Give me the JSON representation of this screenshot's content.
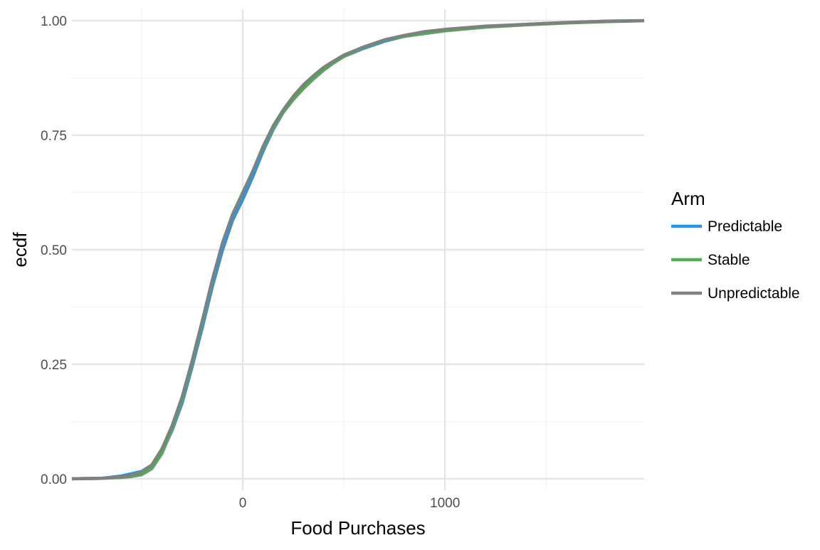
{
  "chart_data": {
    "type": "line",
    "subtype": "ecdf",
    "xlabel": "Food Purchases",
    "ylabel": "ecdf",
    "xlim": [
      -845,
      1985
    ],
    "ylim": [
      -0.025,
      1.025
    ],
    "x_ticks": [
      {
        "value": 0,
        "label": "0"
      },
      {
        "value": 1000,
        "label": "1000"
      }
    ],
    "x_minor_ticks": [
      -500,
      500,
      1500
    ],
    "y_ticks": [
      {
        "value": 0.0,
        "label": "0.00"
      },
      {
        "value": 0.25,
        "label": "0.25"
      },
      {
        "value": 0.5,
        "label": "0.50"
      },
      {
        "value": 0.75,
        "label": "0.75"
      },
      {
        "value": 1.0,
        "label": "1.00"
      }
    ],
    "y_minor_ticks": [
      0.125,
      0.375,
      0.625,
      0.875
    ],
    "grid": true,
    "legend": {
      "title": "Arm",
      "position": "right"
    },
    "series": [
      {
        "name": "Predictable",
        "color": "#2196F3",
        "points": [
          [
            -845,
            0.0
          ],
          [
            -700,
            0.001
          ],
          [
            -600,
            0.006
          ],
          [
            -550,
            0.011
          ],
          [
            -500,
            0.016
          ],
          [
            -450,
            0.03
          ],
          [
            -400,
            0.058
          ],
          [
            -350,
            0.105
          ],
          [
            -300,
            0.165
          ],
          [
            -250,
            0.245
          ],
          [
            -200,
            0.33
          ],
          [
            -150,
            0.42
          ],
          [
            -100,
            0.5
          ],
          [
            -50,
            0.565
          ],
          [
            0,
            0.61
          ],
          [
            50,
            0.66
          ],
          [
            100,
            0.715
          ],
          [
            150,
            0.762
          ],
          [
            200,
            0.8
          ],
          [
            250,
            0.83
          ],
          [
            300,
            0.855
          ],
          [
            350,
            0.875
          ],
          [
            400,
            0.893
          ],
          [
            450,
            0.91
          ],
          [
            500,
            0.922
          ],
          [
            600,
            0.94
          ],
          [
            700,
            0.955
          ],
          [
            800,
            0.966
          ],
          [
            900,
            0.975
          ],
          [
            1000,
            0.98
          ],
          [
            1200,
            0.987
          ],
          [
            1400,
            0.992
          ],
          [
            1600,
            0.996
          ],
          [
            1800,
            0.999
          ],
          [
            1985,
            1.0
          ]
        ]
      },
      {
        "name": "Stable",
        "color": "#4CAF50",
        "points": [
          [
            -845,
            0.0
          ],
          [
            -700,
            0.001
          ],
          [
            -600,
            0.003
          ],
          [
            -550,
            0.005
          ],
          [
            -500,
            0.009
          ],
          [
            -450,
            0.022
          ],
          [
            -400,
            0.055
          ],
          [
            -350,
            0.108
          ],
          [
            -300,
            0.172
          ],
          [
            -250,
            0.252
          ],
          [
            -200,
            0.34
          ],
          [
            -150,
            0.432
          ],
          [
            -100,
            0.515
          ],
          [
            -50,
            0.578
          ],
          [
            0,
            0.625
          ],
          [
            50,
            0.672
          ],
          [
            100,
            0.722
          ],
          [
            150,
            0.765
          ],
          [
            200,
            0.8
          ],
          [
            250,
            0.828
          ],
          [
            300,
            0.852
          ],
          [
            350,
            0.873
          ],
          [
            400,
            0.892
          ],
          [
            450,
            0.908
          ],
          [
            500,
            0.922
          ],
          [
            600,
            0.942
          ],
          [
            700,
            0.957
          ],
          [
            800,
            0.966
          ],
          [
            900,
            0.972
          ],
          [
            1000,
            0.978
          ],
          [
            1200,
            0.986
          ],
          [
            1400,
            0.991
          ],
          [
            1600,
            0.995
          ],
          [
            1800,
            0.998
          ],
          [
            1985,
            1.0
          ]
        ]
      },
      {
        "name": "Unpredictable",
        "color": "#808080",
        "points": [
          [
            -845,
            0.0
          ],
          [
            -700,
            0.001
          ],
          [
            -600,
            0.004
          ],
          [
            -550,
            0.008
          ],
          [
            -500,
            0.014
          ],
          [
            -450,
            0.03
          ],
          [
            -400,
            0.065
          ],
          [
            -350,
            0.115
          ],
          [
            -300,
            0.178
          ],
          [
            -250,
            0.258
          ],
          [
            -200,
            0.345
          ],
          [
            -150,
            0.435
          ],
          [
            -100,
            0.515
          ],
          [
            -50,
            0.575
          ],
          [
            0,
            0.622
          ],
          [
            50,
            0.672
          ],
          [
            100,
            0.725
          ],
          [
            150,
            0.77
          ],
          [
            200,
            0.805
          ],
          [
            250,
            0.835
          ],
          [
            300,
            0.86
          ],
          [
            350,
            0.88
          ],
          [
            400,
            0.898
          ],
          [
            450,
            0.912
          ],
          [
            500,
            0.925
          ],
          [
            600,
            0.943
          ],
          [
            700,
            0.958
          ],
          [
            800,
            0.968
          ],
          [
            900,
            0.976
          ],
          [
            1000,
            0.981
          ],
          [
            1200,
            0.988
          ],
          [
            1400,
            0.992
          ],
          [
            1600,
            0.996
          ],
          [
            1800,
            0.999
          ],
          [
            1985,
            1.0
          ]
        ]
      }
    ]
  }
}
